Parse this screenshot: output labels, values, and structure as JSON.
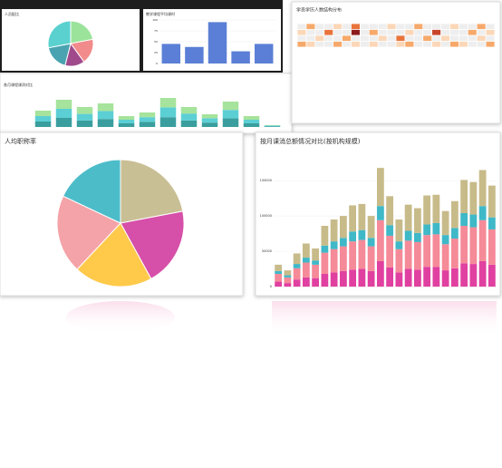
{
  "chart_data": [
    {
      "type": "pie",
      "title": "人员配比",
      "values": [
        22,
        18,
        14,
        18,
        28
      ],
      "colors": [
        "#9be39b",
        "#f28b8b",
        "#a04a8c",
        "#4aa3b0",
        "#5ad1cf"
      ]
    },
    {
      "type": "bar",
      "title": "教学课程平均课时",
      "values": [
        45,
        38,
        95,
        28,
        45
      ],
      "color": "#5b7fd6",
      "ylim": [
        0,
        100
      ],
      "yticks": [
        0,
        25,
        50,
        75,
        100
      ]
    },
    {
      "type": "stacked",
      "title": "各月课程课消对比",
      "ylim": [
        0,
        100
      ],
      "series": [
        {
          "color": "#3a9e9e",
          "values": [
            15,
            25,
            18,
            22,
            10,
            14,
            27,
            18,
            12,
            24,
            10,
            2
          ]
        },
        {
          "color": "#5ccfd4",
          "values": [
            15,
            25,
            18,
            22,
            10,
            13,
            27,
            19,
            12,
            23,
            10,
            2
          ]
        },
        {
          "color": "#a6e39c",
          "values": [
            15,
            25,
            19,
            21,
            10,
            13,
            26,
            18,
            11,
            23,
            10,
            1
          ]
        }
      ]
    },
    {
      "type": "heatmap",
      "title": "学员学历人数结构分布",
      "colors": [
        "#eeeeee",
        "#fbd7b8",
        "#f6a96b",
        "#e8743b",
        "#c8452a",
        "#8c1c1c"
      ],
      "values": [
        [
          0,
          2,
          0,
          0,
          1,
          0,
          3,
          0,
          0,
          0,
          1,
          0,
          0,
          2,
          0,
          0,
          0,
          1,
          0,
          0,
          2,
          0
        ],
        [
          1,
          0,
          0,
          3,
          0,
          0,
          5,
          0,
          2,
          0,
          0,
          0,
          1,
          0,
          0,
          4,
          0,
          0,
          0,
          2,
          0,
          1
        ],
        [
          0,
          0,
          1,
          0,
          0,
          2,
          0,
          0,
          0,
          1,
          0,
          3,
          0,
          0,
          2,
          0,
          1,
          0,
          0,
          0,
          1,
          0
        ],
        [
          2,
          1,
          0,
          0,
          2,
          0,
          1,
          0,
          1,
          0,
          0,
          1,
          2,
          0,
          0,
          1,
          0,
          2,
          1,
          0,
          0,
          2
        ]
      ]
    },
    {
      "type": "pie",
      "title": "人均职称率",
      "values": [
        22,
        20,
        20,
        20,
        18
      ],
      "colors": [
        "#c9bf95",
        "#d64fa8",
        "#ffc94a",
        "#f4a3a8",
        "#4dbcc9"
      ]
    },
    {
      "type": "stacked",
      "title": "按月课消总额情况对比(按机构规模)",
      "ylim": [
        0,
        190000
      ],
      "yticks": [
        0,
        50000,
        100000,
        150000
      ],
      "series": [
        {
          "color": "#e040a0",
          "values": [
            7000,
            5000,
            10000,
            13000,
            12000,
            18000,
            20000,
            22000,
            24000,
            25000,
            22000,
            36000,
            27000,
            20000,
            25000,
            24000,
            28000,
            28000,
            23000,
            26000,
            33000,
            32000,
            36000,
            31000
          ]
        },
        {
          "color": "#f58a98",
          "values": [
            11000,
            8000,
            16000,
            21000,
            19000,
            30000,
            33000,
            35000,
            40000,
            41000,
            35000,
            58000,
            45000,
            33000,
            40000,
            39000,
            45000,
            46000,
            37000,
            42000,
            53000,
            52000,
            58000,
            50000
          ]
        },
        {
          "color": "#3fb8c8",
          "values": [
            4000,
            3000,
            6000,
            7000,
            6000,
            10000,
            11000,
            12000,
            14000,
            14000,
            12000,
            20000,
            15000,
            11000,
            14000,
            13000,
            15000,
            16000,
            13000,
            15000,
            18000,
            18000,
            20000,
            17000
          ]
        },
        {
          "color": "#c8bb8a",
          "values": [
            9000,
            7000,
            15000,
            20000,
            17000,
            28000,
            31000,
            31000,
            37000,
            37000,
            31000,
            54000,
            41000,
            31000,
            37000,
            35000,
            41000,
            40000,
            34000,
            38000,
            47000,
            46000,
            51000,
            45000
          ]
        }
      ]
    }
  ]
}
